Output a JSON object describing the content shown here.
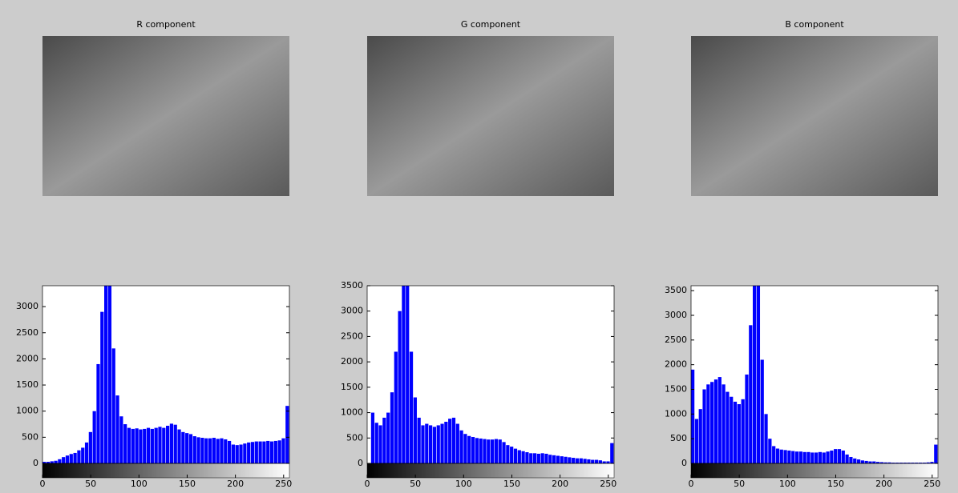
{
  "chart_data": [
    {
      "type": "image",
      "title": "R component"
    },
    {
      "type": "image",
      "title": "G component"
    },
    {
      "type": "image",
      "title": "B component"
    },
    {
      "type": "histogram",
      "color": "#0000ff",
      "bins": [
        0,
        4,
        8,
        12,
        16,
        20,
        24,
        28,
        32,
        36,
        40,
        44,
        48,
        52,
        56,
        60,
        64,
        68,
        72,
        76,
        80,
        84,
        88,
        92,
        96,
        100,
        104,
        108,
        112,
        116,
        120,
        124,
        128,
        132,
        136,
        140,
        144,
        148,
        152,
        156,
        160,
        164,
        168,
        172,
        176,
        180,
        184,
        188,
        192,
        196,
        200,
        204,
        208,
        212,
        216,
        220,
        224,
        228,
        232,
        236,
        240,
        244,
        248,
        252,
        256
      ],
      "values": [
        30,
        30,
        40,
        50,
        80,
        120,
        150,
        180,
        200,
        250,
        300,
        400,
        600,
        1000,
        1900,
        2900,
        3500,
        3500,
        2200,
        1300,
        900,
        750,
        680,
        660,
        670,
        650,
        660,
        680,
        660,
        680,
        700,
        680,
        720,
        760,
        740,
        650,
        600,
        580,
        560,
        520,
        500,
        490,
        480,
        480,
        490,
        470,
        480,
        460,
        430,
        360,
        350,
        360,
        380,
        400,
        410,
        420,
        420,
        420,
        430,
        420,
        430,
        440,
        480,
        1100
      ],
      "xlim": [
        0,
        256
      ],
      "xticks": [
        0,
        50,
        100,
        150,
        200,
        250
      ],
      "ylim": [
        0,
        3400
      ],
      "yticks": [
        0,
        500,
        1000,
        1500,
        2000,
        2500,
        3000
      ]
    },
    {
      "type": "histogram",
      "color": "#0000ff",
      "bins": [
        0,
        4,
        8,
        12,
        16,
        20,
        24,
        28,
        32,
        36,
        40,
        44,
        48,
        52,
        56,
        60,
        64,
        68,
        72,
        76,
        80,
        84,
        88,
        92,
        96,
        100,
        104,
        108,
        112,
        116,
        120,
        124,
        128,
        132,
        136,
        140,
        144,
        148,
        152,
        156,
        160,
        164,
        168,
        172,
        176,
        180,
        184,
        188,
        192,
        196,
        200,
        204,
        208,
        212,
        216,
        220,
        224,
        228,
        232,
        236,
        240,
        244,
        248,
        252,
        256
      ],
      "values": [
        0,
        1000,
        800,
        750,
        900,
        1000,
        1400,
        2200,
        3000,
        3600,
        3600,
        2200,
        1300,
        900,
        750,
        780,
        750,
        720,
        750,
        780,
        820,
        880,
        900,
        780,
        650,
        580,
        540,
        520,
        500,
        490,
        480,
        470,
        470,
        480,
        470,
        420,
        360,
        330,
        290,
        260,
        240,
        220,
        200,
        200,
        190,
        200,
        190,
        170,
        160,
        150,
        140,
        130,
        120,
        110,
        100,
        100,
        90,
        80,
        70,
        70,
        60,
        40,
        40,
        400
      ],
      "xlim": [
        0,
        256
      ],
      "xticks": [
        0,
        50,
        100,
        150,
        200,
        250
      ],
      "ylim": [
        0,
        3500
      ],
      "yticks": [
        0,
        500,
        1000,
        1500,
        2000,
        2500,
        3000,
        3500
      ]
    },
    {
      "type": "histogram",
      "color": "#0000ff",
      "bins": [
        0,
        4,
        8,
        12,
        16,
        20,
        24,
        28,
        32,
        36,
        40,
        44,
        48,
        52,
        56,
        60,
        64,
        68,
        72,
        76,
        80,
        84,
        88,
        92,
        96,
        100,
        104,
        108,
        112,
        116,
        120,
        124,
        128,
        132,
        136,
        140,
        144,
        148,
        152,
        156,
        160,
        164,
        168,
        172,
        176,
        180,
        184,
        188,
        192,
        196,
        200,
        204,
        208,
        212,
        216,
        220,
        224,
        228,
        232,
        236,
        240,
        244,
        248,
        252,
        256
      ],
      "values": [
        1900,
        900,
        1100,
        1500,
        1600,
        1650,
        1700,
        1750,
        1600,
        1450,
        1350,
        1250,
        1200,
        1300,
        1800,
        2800,
        3600,
        3600,
        2100,
        1000,
        500,
        350,
        300,
        280,
        270,
        260,
        250,
        240,
        240,
        230,
        230,
        220,
        220,
        230,
        220,
        240,
        260,
        290,
        290,
        260,
        180,
        130,
        100,
        80,
        60,
        50,
        40,
        40,
        30,
        25,
        20,
        20,
        15,
        15,
        15,
        15,
        15,
        15,
        15,
        15,
        15,
        20,
        30,
        380
      ],
      "xlim": [
        0,
        256
      ],
      "xticks": [
        0,
        50,
        100,
        150,
        200,
        250
      ],
      "ylim": [
        0,
        3600
      ],
      "yticks": [
        0,
        500,
        1000,
        1500,
        2000,
        2500,
        3000,
        3500
      ]
    }
  ]
}
